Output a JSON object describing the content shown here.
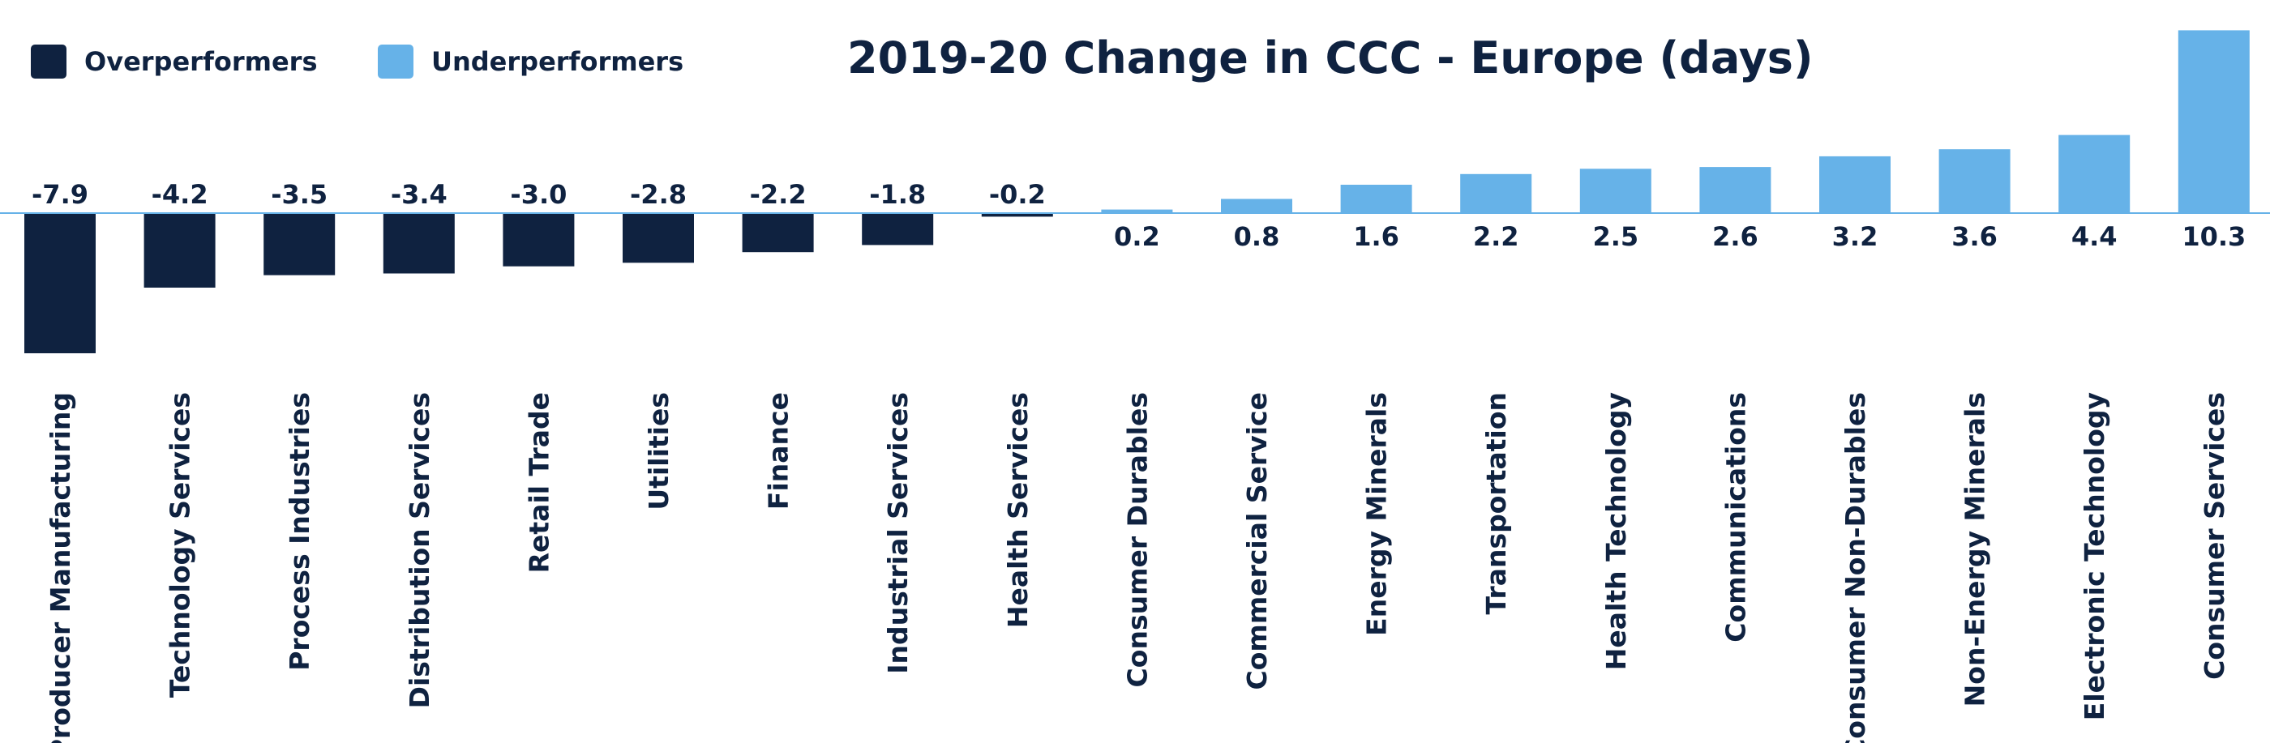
{
  "chart_data": {
    "type": "bar",
    "title": "2019-20 Change in  CCC - Europe (days)",
    "xlabel": "",
    "ylabel": "",
    "ylim": [
      -8,
      10.3
    ],
    "grid": false,
    "legend_position": "top-left",
    "categories": [
      "Producer Manufacturing",
      "Technology Services",
      "Process Industries",
      "Distribution Services",
      "Retail Trade",
      "Utilities",
      "Finance",
      "Industrial Services",
      "Health Services",
      "Consumer Durables",
      "Commercial Service",
      "Energy Minerals",
      "Transportation",
      "Health Technology",
      "Communications",
      "Consumer Non-Durables",
      "Non-Energy Minerals",
      "Electronic Technology",
      "Consumer Services"
    ],
    "values": [
      -7.9,
      -4.2,
      -3.5,
      -3.4,
      -3.0,
      -2.8,
      -2.2,
      -1.8,
      -0.2,
      0.2,
      0.8,
      1.6,
      2.2,
      2.5,
      2.6,
      3.2,
      3.6,
      4.4,
      10.3
    ],
    "value_labels": [
      "-7.9",
      "-4.2",
      "-3.5",
      "-3.4",
      "-3.0",
      "-2.8",
      "-2.2",
      "-1.8",
      "-0.2",
      "0.2",
      "0.8",
      "1.6",
      "2.2",
      "2.5",
      "2.6",
      "3.2",
      "3.6",
      "4.4",
      "10.3"
    ],
    "legend": [
      {
        "name": "Overperformers",
        "color": "#0f2240"
      },
      {
        "name": "Underperformers",
        "color": "#66b2e8"
      }
    ],
    "colors": {
      "overperformers": "#0f2240",
      "underperformers": "#66b2e8",
      "baseline": "#66b2e8"
    }
  }
}
